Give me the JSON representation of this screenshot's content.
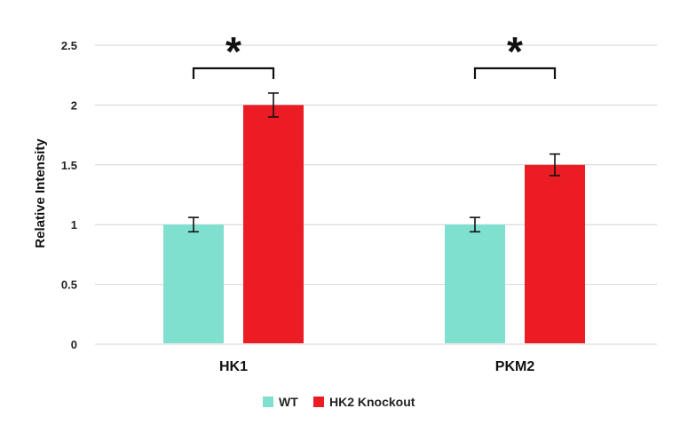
{
  "chart_data": {
    "type": "bar",
    "title": "",
    "xlabel": "",
    "ylabel": "Relative Intensity",
    "ylim": [
      0,
      2.5
    ],
    "yticks": [
      "0",
      "0.5",
      "1",
      "1.5",
      "2",
      "2.5"
    ],
    "grid": true,
    "legend_position": "bottom",
    "categories": [
      "HK1",
      "PKM2"
    ],
    "series": [
      {
        "name": "WT",
        "color": "#7fe0d0",
        "values": [
          1.0,
          1.0
        ],
        "errors": [
          0.06,
          0.06
        ]
      },
      {
        "name": "HK2 Knockout",
        "color": "#ec1c24",
        "values": [
          2.0,
          1.5
        ],
        "errors": [
          0.1,
          0.09
        ]
      }
    ],
    "annotations": [
      {
        "category": "HK1",
        "text": "*",
        "type": "significance-bracket"
      },
      {
        "category": "PKM2",
        "text": "*",
        "type": "significance-bracket"
      }
    ]
  }
}
